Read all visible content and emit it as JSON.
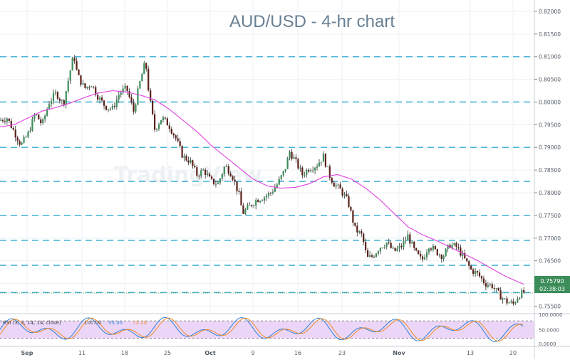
{
  "chart_data": {
    "type": "candlestick",
    "title": "AUD/USD - 4-hr chart",
    "pair": "AUD/USD",
    "timeframe": "4-hr",
    "price_axis": {
      "ylim": [
        0.7535,
        0.8225
      ],
      "ticks": [
        "0.82000",
        "0.81500",
        "0.81000",
        "0.80500",
        "0.80000",
        "0.79500",
        "0.79000",
        "0.78500",
        "0.78000",
        "0.77500",
        "0.77000",
        "0.76500",
        "0.76000",
        "0.75500"
      ]
    },
    "x_axis": {
      "labels": [
        "Sep",
        "11",
        "18",
        "25",
        "Oct",
        "9",
        "16",
        "23",
        "Nov",
        "13",
        "20"
      ],
      "bold_labels": [
        "Sep",
        "Oct",
        "Nov"
      ]
    },
    "horizontal_levels": [
      0.81,
      0.8,
      0.79,
      0.7825,
      0.775,
      0.7695,
      0.764,
      0.758
    ],
    "current_price": {
      "value": 0.7579,
      "label": "0.75790",
      "countdown": "02:38:03"
    },
    "series": [
      {
        "name": "moving-average",
        "color": "#e040e0",
        "points": [
          [
            0,
            0.7945
          ],
          [
            20,
            0.795
          ],
          [
            40,
            0.7965
          ],
          [
            60,
            0.798
          ],
          [
            80,
            0.7988
          ],
          [
            100,
            0.7998
          ],
          [
            120,
            0.801
          ],
          [
            140,
            0.802
          ],
          [
            160,
            0.8025
          ],
          [
            180,
            0.8022
          ],
          [
            200,
            0.8015
          ],
          [
            220,
            0.8005
          ],
          [
            240,
            0.7985
          ],
          [
            260,
            0.796
          ],
          [
            280,
            0.7935
          ],
          [
            300,
            0.7905
          ],
          [
            320,
            0.788
          ],
          [
            340,
            0.7855
          ],
          [
            360,
            0.783
          ],
          [
            380,
            0.7815
          ],
          [
            400,
            0.781
          ],
          [
            420,
            0.7812
          ],
          [
            440,
            0.782
          ],
          [
            460,
            0.7835
          ],
          [
            480,
            0.784
          ],
          [
            500,
            0.783
          ],
          [
            520,
            0.781
          ],
          [
            540,
            0.7785
          ],
          [
            560,
            0.7755
          ],
          [
            580,
            0.7725
          ],
          [
            600,
            0.7708
          ],
          [
            620,
            0.7695
          ],
          [
            640,
            0.768
          ],
          [
            660,
            0.7665
          ],
          [
            680,
            0.765
          ],
          [
            700,
            0.7632
          ],
          [
            720,
            0.7615
          ],
          [
            745,
            0.7598
          ]
        ]
      },
      {
        "name": "price-path",
        "points": [
          [
            0,
            0.796
          ],
          [
            10,
            0.7965
          ],
          [
            20,
            0.7935
          ],
          [
            30,
            0.7905
          ],
          [
            40,
            0.793
          ],
          [
            50,
            0.7975
          ],
          [
            60,
            0.795
          ],
          [
            70,
            0.8
          ],
          [
            80,
            0.802
          ],
          [
            90,
            0.7995
          ],
          [
            100,
            0.807
          ],
          [
            105,
            0.8105
          ],
          [
            110,
            0.806
          ],
          [
            120,
            0.803
          ],
          [
            130,
            0.804
          ],
          [
            140,
            0.801
          ],
          [
            150,
            0.799
          ],
          [
            160,
            0.7985
          ],
          [
            170,
            0.802
          ],
          [
            180,
            0.803
          ],
          [
            190,
            0.798
          ],
          [
            200,
            0.805
          ],
          [
            207,
            0.809
          ],
          [
            212,
            0.8015
          ],
          [
            220,
            0.794
          ],
          [
            230,
            0.7965
          ],
          [
            240,
            0.795
          ],
          [
            250,
            0.792
          ],
          [
            260,
            0.788
          ],
          [
            270,
            0.787
          ],
          [
            280,
            0.784
          ],
          [
            290,
            0.785
          ],
          [
            300,
            0.7825
          ],
          [
            310,
            0.782
          ],
          [
            320,
            0.786
          ],
          [
            330,
            0.784
          ],
          [
            340,
            0.7795
          ],
          [
            345,
            0.7755
          ],
          [
            355,
            0.777
          ],
          [
            365,
            0.7785
          ],
          [
            375,
            0.779
          ],
          [
            385,
            0.78
          ],
          [
            395,
            0.782
          ],
          [
            405,
            0.785
          ],
          [
            412,
            0.789
          ],
          [
            420,
            0.787
          ],
          [
            430,
            0.784
          ],
          [
            440,
            0.7855
          ],
          [
            450,
            0.786
          ],
          [
            460,
            0.788
          ],
          [
            468,
            0.784
          ],
          [
            475,
            0.782
          ],
          [
            485,
            0.7805
          ],
          [
            495,
            0.778
          ],
          [
            505,
            0.772
          ],
          [
            515,
            0.7705
          ],
          [
            522,
            0.7655
          ],
          [
            530,
            0.766
          ],
          [
            540,
            0.768
          ],
          [
            550,
            0.769
          ],
          [
            560,
            0.767
          ],
          [
            570,
            0.768
          ],
          [
            580,
            0.7705
          ],
          [
            590,
            0.767
          ],
          [
            600,
            0.765
          ],
          [
            610,
            0.7685
          ],
          [
            620,
            0.767
          ],
          [
            630,
            0.766
          ],
          [
            640,
            0.7685
          ],
          [
            650,
            0.768
          ],
          [
            660,
            0.7655
          ],
          [
            670,
            0.763
          ],
          [
            680,
            0.762
          ],
          [
            690,
            0.76
          ],
          [
            700,
            0.7595
          ],
          [
            710,
            0.7575
          ],
          [
            720,
            0.756
          ],
          [
            730,
            0.7555
          ],
          [
            738,
            0.7575
          ],
          [
            745,
            0.758
          ]
        ]
      }
    ],
    "indicator": {
      "label": "RSI (3, 3, 14, 14, close)",
      "values_text": [
        "100.00",
        "55.30",
        "72.20"
      ],
      "scale_ticks": [
        "100.0000",
        "50.0000",
        "0.0000"
      ],
      "upper_band": 80,
      "lower_band": 20
    },
    "grid": true,
    "watermark": "TradingView"
  }
}
